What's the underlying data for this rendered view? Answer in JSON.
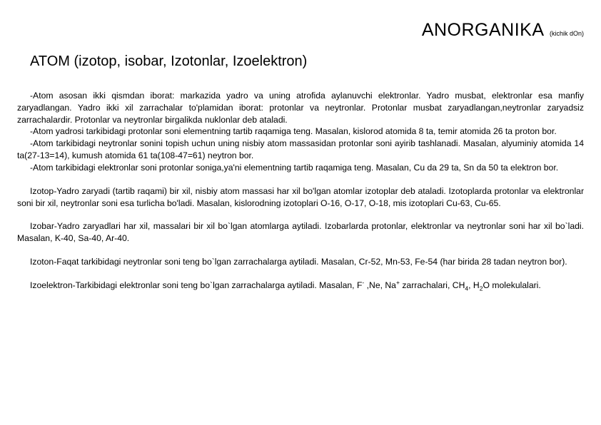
{
  "header": {
    "main": "ANORGANIKA",
    "sub": "(kichik dOn)"
  },
  "title": "ATOM (izotop, isobar, Izotonlar, Izoelektron)",
  "paragraphs": {
    "p1a": "-Atom asosan ikki qismdan iborat: markazida yadro va  uning atrofida aylanuvchi elektronlar. Yadro musbat,  elektronlar  esa manfiy zaryadlangan.                                                                                                        Yadro ikki xil zarrachalar to'plamidan iborat: protonlar  va neytronlar. Protonlar musbat  zaryadlangan,neytronlar  zaryadsiz zarrachalardir. Protonlar va neytronlar birgalikda nuklonlar deb ataladi.",
    "p2": "-Atom yadrosi tarkibidagi protonlar soni elementning tartib raqamiga teng. Masalan, kislorod atomida 8 ta, temir  atomida 26 ta proton bor.",
    "p3": "-Atom tarkibidagi neytronlar sonini topish uchun uning  nisbiy atom massasidan protonlar soni ayirib tashlanadi.  Masalan, alyuminiy atomida 14 ta(27-13=14), kumush atomida 61 ta(108-47=61) neytron bor.",
    "p4": "-Atom tarkibidagi elektronlar soni protonlar soniga,ya'ni elementning tartib raqamiga teng. Masalan, Cu da  29 ta, Sn da 50 ta elektron bor.",
    "p5": "Izotop-Yadro zaryadi (tartib raqami) bir xil, nisbiy atom massasi har xil bo'lgan atomlar izotoplar deb ataladi. Izotoplarda protonlar va elektronlar soni bir xil, neytronlar soni esa turlicha bo'ladi. Masalan, kislorodning izotoplari O-16, O-17, O-18, mis izotoplari Cu-63, Cu-65.",
    "p6": "Izobar-Yadro zaryadlari har xil, massalari bir xil bo`lgan atomlarga aytiladi.  Izobarlarda protonlar, elektronlar va neytronlar soni har xil bo`ladi. Masalan, K-40, Sa-40, Ar-40.",
    "p7": "Izoton-Faqat tarkibidagi neytronlar soni teng bo`lgan zarrachalarga aytiladi. Masalan, Cr-52, Mn-53,  Fe-54 (har birida 28 tadan neytron bor).",
    "p8_pre": "Izoelektron-Tarkibidagi elektronlar soni teng bo`lgan zarrachalarga aytiladi. Masalan,   F",
    "p8_mid1": " ,Ne,  Na",
    "p8_mid2": " zarrachalari, CH",
    "p8_mid3": ", H",
    "p8_post": "O molekulalari.",
    "sup_minus": "-",
    "sup_plus": "+",
    "sub_4": "4",
    "sub_2": "2"
  },
  "style": {
    "page_bg": "#ffffff",
    "text_color": "#000000",
    "header_fontsize": 25,
    "header_sub_fontsize": 9,
    "title_fontsize": 20,
    "body_fontsize": 12.2
  }
}
